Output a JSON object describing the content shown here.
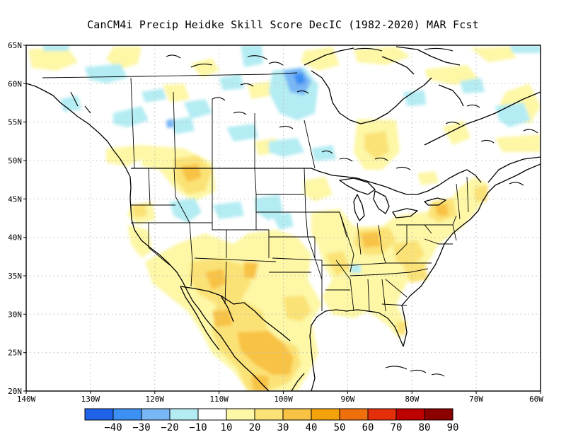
{
  "title": "CanCM4i Precip Heidke Skill Score DecIC (1982-2020) MAR Fcst",
  "axes": {
    "lat_labels": [
      "65N",
      "60N",
      "55N",
      "50N",
      "45N",
      "40N",
      "35N",
      "30N",
      "25N",
      "20N"
    ],
    "lon_labels": [
      "140W",
      "130W",
      "120W",
      "110W",
      "100W",
      "90W",
      "80W",
      "70W",
      "60W"
    ]
  },
  "colorbar": {
    "labels": [
      "-40",
      "-30",
      "-20",
      "-10",
      "10",
      "20",
      "30",
      "40",
      "50",
      "60",
      "70",
      "80",
      "90"
    ],
    "colors": [
      "#1f64e8",
      "#3c8ff3",
      "#78b6f6",
      "#b3ecf3",
      "#ffffff",
      "#fdf7a6",
      "#fbe276",
      "#f8c245",
      "#f4a20c",
      "#ef6f0d",
      "#e52f0b",
      "#bd0000",
      "#8c0000"
    ]
  }
}
